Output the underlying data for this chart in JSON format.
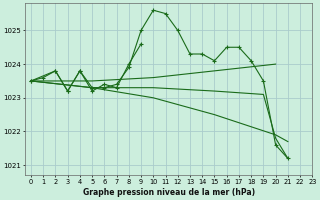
{
  "background_color": "#cceedd",
  "grid_color": "#aacccc",
  "line_color": "#1a6b1a",
  "title": "Graphe pression niveau de la mer (hPa)",
  "xlim": [
    -0.5,
    23
  ],
  "ylim": [
    1020.7,
    1025.8
  ],
  "yticks": [
    1021,
    1022,
    1023,
    1024,
    1025
  ],
  "xticks": [
    0,
    1,
    2,
    3,
    4,
    5,
    6,
    7,
    8,
    9,
    10,
    11,
    12,
    13,
    14,
    15,
    16,
    17,
    18,
    19,
    20,
    21,
    22,
    23
  ],
  "series": [
    {
      "x": [
        0,
        1,
        2,
        3,
        4,
        5,
        6,
        7,
        8,
        9,
        10,
        11,
        12,
        13,
        14,
        15,
        16,
        17,
        18,
        19,
        20,
        21
      ],
      "y": [
        1023.5,
        1023.6,
        1023.8,
        1023.2,
        1023.8,
        1023.3,
        1023.3,
        1023.4,
        1023.9,
        1025.0,
        1025.6,
        1025.5,
        1025.0,
        1024.3,
        1024.3,
        1024.1,
        1024.5,
        1024.5,
        1024.1,
        1023.5,
        1021.6,
        1021.2
      ],
      "marker": true
    },
    {
      "x": [
        0,
        2,
        3,
        4,
        5,
        6,
        7,
        8,
        9
      ],
      "y": [
        1023.5,
        1023.8,
        1023.2,
        1023.8,
        1023.2,
        1023.4,
        1023.3,
        1024.0,
        1024.6
      ],
      "marker": true
    },
    {
      "x": [
        0,
        5,
        10,
        15,
        20
      ],
      "y": [
        1023.5,
        1023.5,
        1023.6,
        1023.8,
        1024.0
      ],
      "marker": false
    },
    {
      "x": [
        0,
        5,
        10,
        15,
        20,
        21
      ],
      "y": [
        1023.5,
        1023.3,
        1023.0,
        1022.5,
        1021.9,
        1021.7
      ],
      "marker": false
    },
    {
      "x": [
        0,
        5,
        10,
        15,
        19,
        20,
        21
      ],
      "y": [
        1023.5,
        1023.3,
        1023.3,
        1023.2,
        1023.1,
        1021.8,
        1021.2
      ],
      "marker": false
    }
  ]
}
